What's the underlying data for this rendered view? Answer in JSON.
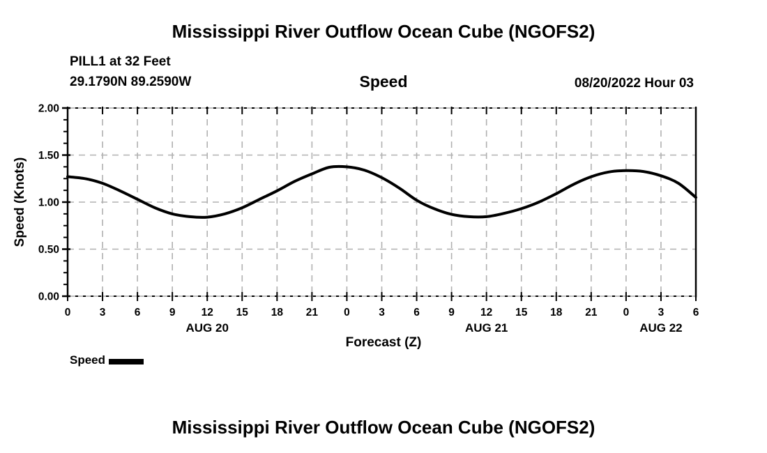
{
  "page": {
    "top_title": "Mississippi River Outflow Ocean Cube (NGOFS2)",
    "bottom_title": "Mississippi River Outflow Ocean Cube (NGOFS2)"
  },
  "station": {
    "name_line": "PILL1 at 32 Feet",
    "coords_line": "29.1790N  89.2590W",
    "datetime_label": "08/20/2022 Hour 03"
  },
  "chart_data": {
    "type": "line",
    "title": "Speed",
    "xlabel": "Forecast (Z)",
    "ylabel": "Speed (Knots)",
    "ylim": [
      0.0,
      2.0
    ],
    "yticks": [
      0.0,
      0.5,
      1.0,
      1.5,
      2.0
    ],
    "ytick_labels": [
      "0.00",
      "0.50",
      "1.00",
      "1.50",
      "2.00"
    ],
    "y_minor_step": 0.125,
    "x_hours_range": [
      0,
      54
    ],
    "xtick_step_hours": 3,
    "xtick_hours": [
      0,
      3,
      6,
      9,
      12,
      15,
      18,
      21,
      24,
      27,
      30,
      33,
      36,
      39,
      42,
      45,
      48,
      51,
      54
    ],
    "xtick_labels": [
      "0",
      "3",
      "6",
      "9",
      "12",
      "15",
      "18",
      "21",
      "0",
      "3",
      "6",
      "9",
      "12",
      "15",
      "18",
      "21",
      "0",
      "3",
      "6"
    ],
    "day_labels": [
      {
        "label": "AUG 20",
        "hour": 12
      },
      {
        "label": "AUG 21",
        "hour": 36
      },
      {
        "label": "AUG 22",
        "hour": 51
      }
    ],
    "grid": true,
    "legend_position": "bottom-left",
    "legend": [
      {
        "label": "Speed",
        "color": "#000000"
      }
    ],
    "series": [
      {
        "name": "Speed",
        "x_hours": [
          0,
          1.5,
          3,
          4.5,
          6,
          7.5,
          9,
          10.5,
          12,
          13.5,
          15,
          16.5,
          18,
          19.5,
          21,
          22.5,
          24,
          25.5,
          27,
          28.5,
          30,
          31.5,
          33,
          34.5,
          36,
          37.5,
          39,
          40.5,
          42,
          43.5,
          45,
          46.5,
          48,
          49.5,
          51,
          52.5,
          54
        ],
        "values": [
          1.27,
          1.25,
          1.2,
          1.12,
          1.03,
          0.94,
          0.875,
          0.845,
          0.84,
          0.875,
          0.94,
          1.03,
          1.12,
          1.22,
          1.3,
          1.37,
          1.375,
          1.34,
          1.26,
          1.15,
          1.02,
          0.93,
          0.87,
          0.845,
          0.845,
          0.88,
          0.93,
          1.0,
          1.09,
          1.19,
          1.27,
          1.32,
          1.335,
          1.325,
          1.28,
          1.2,
          1.05
        ]
      }
    ],
    "colors": {
      "line": "#000000",
      "grid": "#b0b0b0",
      "axis": "#000000",
      "border_base": "#999999"
    }
  }
}
